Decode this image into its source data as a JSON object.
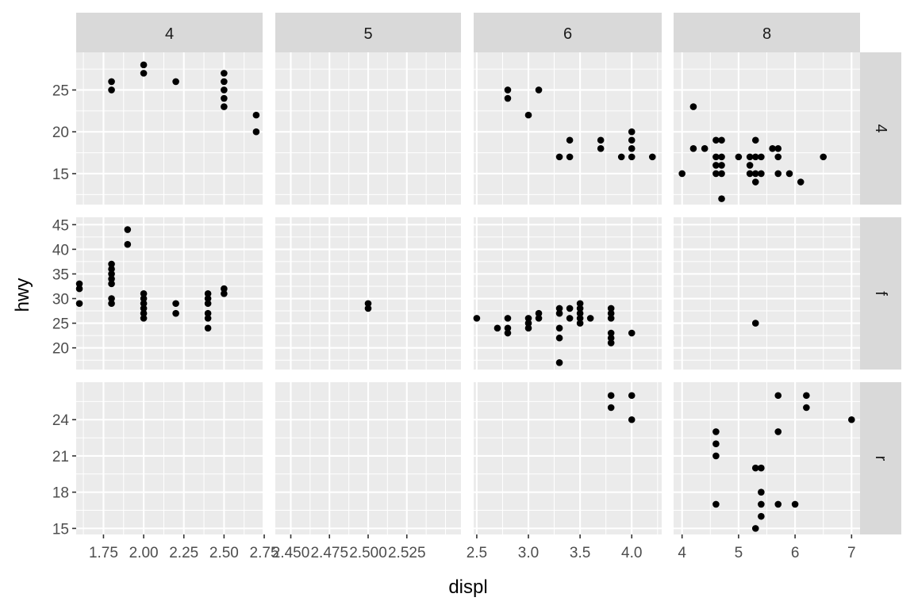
{
  "chart_data": {
    "type": "scatter",
    "facet_grid": true,
    "scales": "free",
    "xlabel": "displ",
    "ylabel": "hwy",
    "columns": [
      "4",
      "5",
      "6",
      "8"
    ],
    "rows": [
      "4",
      "f",
      "r"
    ],
    "column_x_axes": [
      {
        "xlim": [
          1.58,
          2.74
        ],
        "major": [
          1.75,
          2.0,
          2.25,
          2.5,
          2.75
        ],
        "minor": [
          1.625,
          1.875,
          2.125,
          2.375,
          2.625
        ],
        "labels": [
          "1.75",
          "2.00",
          "2.25",
          "2.50",
          "2.75"
        ]
      },
      {
        "xlim": [
          2.44,
          2.56
        ],
        "major": [
          2.45,
          2.475,
          2.5,
          2.525
        ],
        "minor": [
          2.4625,
          2.4875,
          2.5125,
          2.5375,
          2.55
        ],
        "labels": [
          "2.450",
          "2.475",
          "2.500",
          "2.525"
        ]
      },
      {
        "xlim": [
          2.47,
          4.29
        ],
        "major": [
          2.5,
          3.0,
          3.5,
          4.0
        ],
        "minor": [
          2.75,
          3.25,
          3.75,
          4.25
        ],
        "labels": [
          "2.5",
          "3.0",
          "3.5",
          "4.0"
        ]
      },
      {
        "xlim": [
          3.85,
          7.15
        ],
        "major": [
          4,
          5,
          6,
          7
        ],
        "minor": [
          4.5,
          5.5,
          6.5
        ],
        "labels": [
          "4",
          "5",
          "6",
          "7"
        ]
      }
    ],
    "row_y_axes": [
      {
        "ylim": [
          11.3,
          29.5
        ],
        "major": [
          15,
          20,
          25
        ],
        "minor": [
          12.5,
          17.5,
          22.5,
          27.5
        ],
        "labels": [
          "15",
          "20",
          "25"
        ]
      },
      {
        "ylim": [
          15.6,
          46.5
        ],
        "major": [
          20,
          25,
          30,
          35,
          40,
          45
        ],
        "minor": [
          17.5,
          22.5,
          27.5,
          32.5,
          37.5,
          42.5
        ],
        "labels": [
          "20",
          "25",
          "30",
          "35",
          "40",
          "45"
        ]
      },
      {
        "ylim": [
          14.5,
          27.1
        ],
        "major": [
          15,
          18,
          21,
          24
        ],
        "minor": [
          16.5,
          19.5,
          22.5,
          25.5
        ],
        "labels": [
          "15",
          "18",
          "21",
          "24"
        ]
      }
    ],
    "panels": [
      {
        "row": "4",
        "col": "4",
        "points": [
          [
            1.8,
            26
          ],
          [
            1.8,
            25
          ],
          [
            2.0,
            28
          ],
          [
            2.0,
            27
          ],
          [
            2.2,
            26
          ],
          [
            2.5,
            27
          ],
          [
            2.5,
            26
          ],
          [
            2.5,
            25
          ],
          [
            2.5,
            24
          ],
          [
            2.5,
            23
          ],
          [
            2.7,
            22
          ],
          [
            2.7,
            20
          ]
        ]
      },
      {
        "row": "4",
        "col": "5",
        "points": []
      },
      {
        "row": "4",
        "col": "6",
        "points": [
          [
            2.8,
            25
          ],
          [
            2.8,
            24
          ],
          [
            3.0,
            22
          ],
          [
            3.1,
            25
          ],
          [
            3.3,
            17
          ],
          [
            3.4,
            19
          ],
          [
            3.4,
            17
          ],
          [
            3.7,
            19
          ],
          [
            3.7,
            18
          ],
          [
            3.9,
            17
          ],
          [
            4.0,
            20
          ],
          [
            4.0,
            19
          ],
          [
            4.0,
            18
          ],
          [
            4.0,
            17
          ],
          [
            4.2,
            17
          ]
        ]
      },
      {
        "row": "4",
        "col": "8",
        "points": [
          [
            4.0,
            15
          ],
          [
            4.2,
            23
          ],
          [
            4.2,
            18
          ],
          [
            4.4,
            18
          ],
          [
            4.6,
            19
          ],
          [
            4.6,
            17
          ],
          [
            4.6,
            16
          ],
          [
            4.6,
            15
          ],
          [
            4.7,
            19
          ],
          [
            4.7,
            17
          ],
          [
            4.7,
            16
          ],
          [
            4.7,
            15
          ],
          [
            4.7,
            12
          ],
          [
            5.0,
            17
          ],
          [
            5.2,
            17
          ],
          [
            5.2,
            16
          ],
          [
            5.2,
            15
          ],
          [
            5.3,
            19
          ],
          [
            5.3,
            17
          ],
          [
            5.3,
            15
          ],
          [
            5.3,
            14
          ],
          [
            5.4,
            17
          ],
          [
            5.4,
            15
          ],
          [
            5.6,
            18
          ],
          [
            5.7,
            18
          ],
          [
            5.7,
            17
          ],
          [
            5.7,
            15
          ],
          [
            5.9,
            15
          ],
          [
            6.1,
            14
          ],
          [
            6.5,
            17
          ]
        ]
      },
      {
        "row": "f",
        "col": "4",
        "points": [
          [
            1.6,
            33
          ],
          [
            1.6,
            32
          ],
          [
            1.6,
            29
          ],
          [
            1.8,
            37
          ],
          [
            1.8,
            36
          ],
          [
            1.8,
            35
          ],
          [
            1.8,
            34
          ],
          [
            1.8,
            33
          ],
          [
            1.8,
            30
          ],
          [
            1.8,
            29
          ],
          [
            1.9,
            44
          ],
          [
            1.9,
            41
          ],
          [
            2.0,
            31
          ],
          [
            2.0,
            30
          ],
          [
            2.0,
            29
          ],
          [
            2.0,
            28
          ],
          [
            2.0,
            27
          ],
          [
            2.0,
            26
          ],
          [
            2.2,
            29
          ],
          [
            2.2,
            27
          ],
          [
            2.4,
            31
          ],
          [
            2.4,
            30
          ],
          [
            2.4,
            29
          ],
          [
            2.4,
            27
          ],
          [
            2.4,
            26
          ],
          [
            2.4,
            24
          ],
          [
            2.5,
            32
          ],
          [
            2.5,
            31
          ]
        ]
      },
      {
        "row": "f",
        "col": "5",
        "points": [
          [
            2.5,
            29
          ],
          [
            2.5,
            28
          ]
        ]
      },
      {
        "row": "f",
        "col": "6",
        "points": [
          [
            2.5,
            26
          ],
          [
            2.7,
            24
          ],
          [
            2.8,
            26
          ],
          [
            2.8,
            24
          ],
          [
            2.8,
            23
          ],
          [
            3.0,
            26
          ],
          [
            3.0,
            25
          ],
          [
            3.0,
            24
          ],
          [
            3.1,
            27
          ],
          [
            3.1,
            26
          ],
          [
            3.3,
            28
          ],
          [
            3.3,
            27
          ],
          [
            3.3,
            24
          ],
          [
            3.3,
            22
          ],
          [
            3.3,
            17
          ],
          [
            3.4,
            28
          ],
          [
            3.4,
            26
          ],
          [
            3.5,
            29
          ],
          [
            3.5,
            28
          ],
          [
            3.5,
            27
          ],
          [
            3.5,
            26
          ],
          [
            3.5,
            25
          ],
          [
            3.6,
            26
          ],
          [
            3.8,
            28
          ],
          [
            3.8,
            27
          ],
          [
            3.8,
            26
          ],
          [
            3.8,
            23
          ],
          [
            3.8,
            22
          ],
          [
            3.8,
            21
          ],
          [
            4.0,
            23
          ]
        ]
      },
      {
        "row": "f",
        "col": "8",
        "points": [
          [
            5.3,
            25
          ]
        ]
      },
      {
        "row": "r",
        "col": "4",
        "points": []
      },
      {
        "row": "r",
        "col": "5",
        "points": []
      },
      {
        "row": "r",
        "col": "6",
        "points": [
          [
            3.8,
            26
          ],
          [
            3.8,
            25
          ],
          [
            4.0,
            26
          ],
          [
            4.0,
            24
          ]
        ]
      },
      {
        "row": "r",
        "col": "8",
        "points": [
          [
            4.6,
            23
          ],
          [
            4.6,
            22
          ],
          [
            4.6,
            21
          ],
          [
            4.6,
            17
          ],
          [
            5.3,
            20
          ],
          [
            5.3,
            15
          ],
          [
            5.4,
            20
          ],
          [
            5.4,
            18
          ],
          [
            5.4,
            17
          ],
          [
            5.4,
            16
          ],
          [
            5.7,
            26
          ],
          [
            5.7,
            23
          ],
          [
            5.7,
            17
          ],
          [
            6.0,
            17
          ],
          [
            6.2,
            26
          ],
          [
            6.2,
            25
          ],
          [
            7.0,
            24
          ]
        ]
      }
    ]
  }
}
